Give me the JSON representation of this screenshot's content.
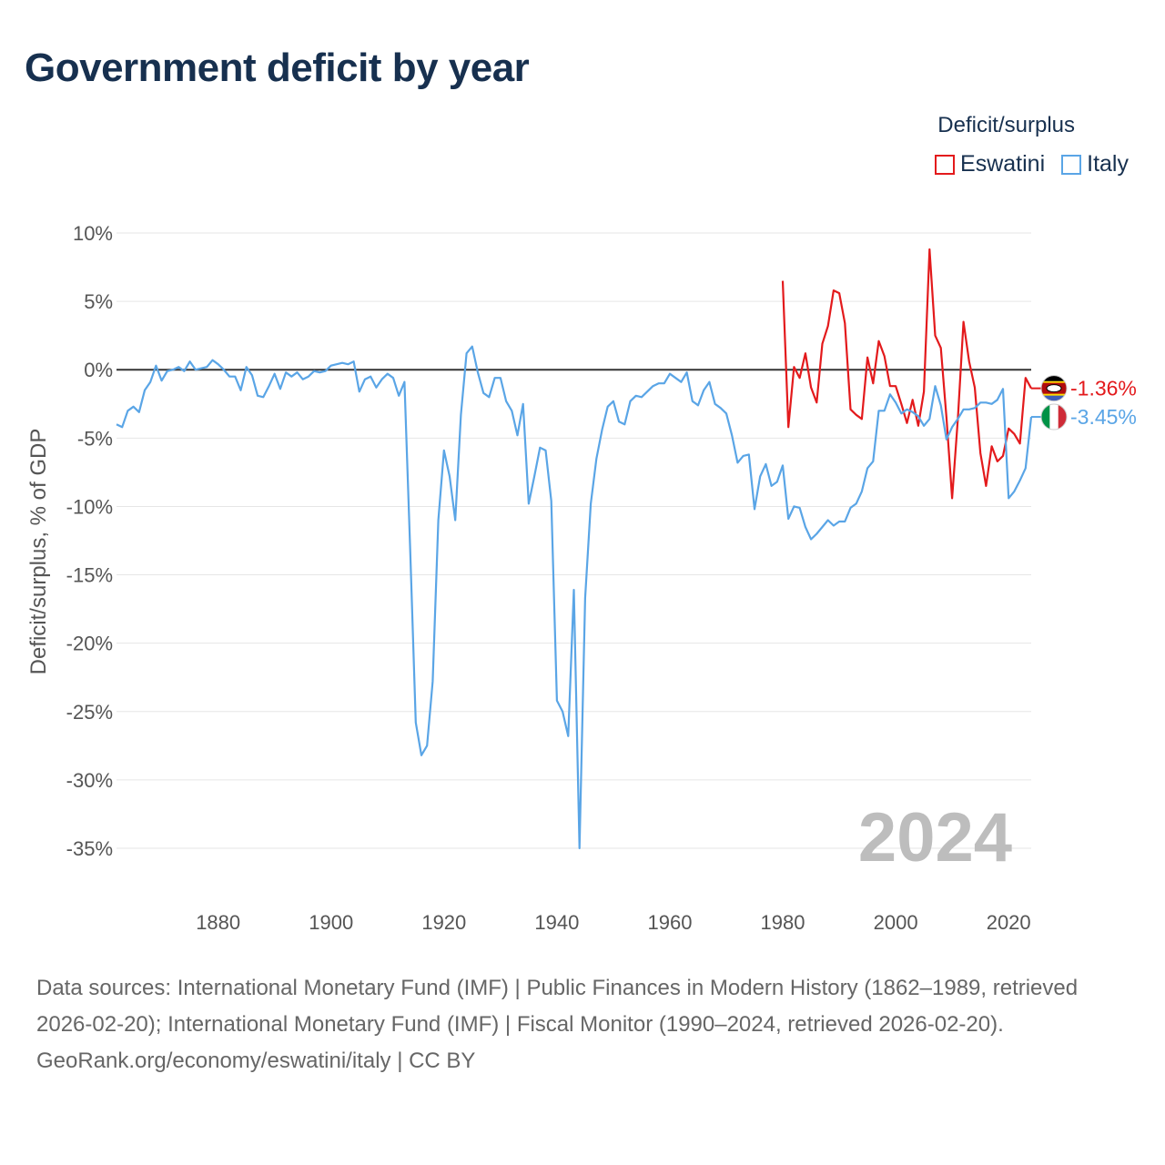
{
  "header": {
    "title": "Government deficit by year"
  },
  "legend": {
    "title": "Deficit/surplus",
    "items": [
      {
        "name": "Eswatini",
        "color": "#e31a1c"
      },
      {
        "name": "Italy",
        "color": "#5aa5e6"
      }
    ]
  },
  "footer": {
    "sources": "Data sources: International Monetary Fund (IMF) | Public Finances in Modern History (1862–1989, retrieved 2026-02-20); International Monetary Fund (IMF) | Fiscal Monitor (1990–2024, retrieved 2026-02-20).",
    "link": "GeoRank.org/economy/eswatini/italy | CC BY"
  },
  "chart_data": {
    "type": "line",
    "title": "Government deficit by year",
    "xlabel": "",
    "ylabel": "Deficit/surplus, % of GDP",
    "xlim": [
      1862,
      2024
    ],
    "ylim": [
      -35,
      10
    ],
    "x_ticks": [
      1880,
      1900,
      1920,
      1940,
      1960,
      1980,
      2000,
      2020
    ],
    "y_ticks": [
      10,
      5,
      0,
      -5,
      -10,
      -15,
      -20,
      -25,
      -30,
      -35
    ],
    "y_tick_labels": [
      "10%",
      "5%",
      "0%",
      "-5%",
      "-10%",
      "-15%",
      "-20%",
      "-25%",
      "-30%",
      "-35%"
    ],
    "watermark_year": "2024",
    "series": [
      {
        "name": "Eswatini",
        "color": "#e31a1c",
        "end_label": "-1.36%",
        "x": [
          1980,
          1981,
          1982,
          1983,
          1984,
          1985,
          1986,
          1987,
          1988,
          1989,
          1990,
          1991,
          1992,
          1993,
          1994,
          1995,
          1996,
          1997,
          1998,
          1999,
          2000,
          2001,
          2002,
          2003,
          2004,
          2005,
          2006,
          2007,
          2008,
          2009,
          2010,
          2011,
          2012,
          2013,
          2014,
          2015,
          2016,
          2017,
          2018,
          2019,
          2020,
          2021,
          2022,
          2023,
          2024
        ],
        "values": [
          6.5,
          -4.2,
          0.2,
          -0.6,
          1.2,
          -1.3,
          -2.4,
          1.9,
          3.2,
          5.8,
          5.6,
          3.4,
          -2.9,
          -3.3,
          -3.6,
          0.9,
          -1.0,
          2.1,
          1.0,
          -1.2,
          -1.2,
          -2.5,
          -3.9,
          -2.2,
          -4.1,
          -1.6,
          8.8,
          2.5,
          1.6,
          -3.5,
          -9.4,
          -3.6,
          3.5,
          0.6,
          -1.3,
          -6.1,
          -8.5,
          -5.6,
          -6.7,
          -6.3,
          -4.3,
          -4.7,
          -5.4,
          -0.6,
          -1.36
        ]
      },
      {
        "name": "Italy",
        "color": "#5aa5e6",
        "end_label": "-3.45%",
        "x": [
          1862,
          1863,
          1864,
          1865,
          1866,
          1867,
          1868,
          1869,
          1870,
          1871,
          1872,
          1873,
          1874,
          1875,
          1876,
          1877,
          1878,
          1879,
          1880,
          1881,
          1882,
          1883,
          1884,
          1885,
          1886,
          1887,
          1888,
          1889,
          1890,
          1891,
          1892,
          1893,
          1894,
          1895,
          1896,
          1897,
          1898,
          1899,
          1900,
          1901,
          1902,
          1903,
          1904,
          1905,
          1906,
          1907,
          1908,
          1909,
          1910,
          1911,
          1912,
          1913,
          1914,
          1915,
          1916,
          1917,
          1918,
          1919,
          1920,
          1921,
          1922,
          1923,
          1924,
          1925,
          1926,
          1927,
          1928,
          1929,
          1930,
          1931,
          1932,
          1933,
          1934,
          1935,
          1936,
          1937,
          1938,
          1939,
          1940,
          1941,
          1942,
          1943,
          1944,
          1945,
          1946,
          1947,
          1948,
          1949,
          1950,
          1951,
          1952,
          1953,
          1954,
          1955,
          1956,
          1957,
          1958,
          1959,
          1960,
          1961,
          1962,
          1963,
          1964,
          1965,
          1966,
          1967,
          1968,
          1969,
          1970,
          1971,
          1972,
          1973,
          1974,
          1975,
          1976,
          1977,
          1978,
          1979,
          1980,
          1981,
          1982,
          1983,
          1984,
          1985,
          1986,
          1987,
          1988,
          1989,
          1990,
          1991,
          1992,
          1993,
          1994,
          1995,
          1996,
          1997,
          1998,
          1999,
          2000,
          2001,
          2002,
          2003,
          2004,
          2005,
          2006,
          2007,
          2008,
          2009,
          2010,
          2011,
          2012,
          2013,
          2014,
          2015,
          2016,
          2017,
          2018,
          2019,
          2020,
          2021,
          2022,
          2023,
          2024
        ],
        "values": [
          -4.0,
          -4.2,
          -3.0,
          -2.7,
          -3.1,
          -1.5,
          -0.9,
          0.3,
          -0.8,
          -0.1,
          0.0,
          0.2,
          -0.1,
          0.6,
          0.0,
          0.1,
          0.2,
          0.7,
          0.4,
          0.0,
          -0.5,
          -0.5,
          -1.5,
          0.2,
          -0.4,
          -1.9,
          -2.0,
          -1.2,
          -0.3,
          -1.4,
          -0.2,
          -0.5,
          -0.2,
          -0.7,
          -0.5,
          -0.1,
          -0.2,
          -0.1,
          0.3,
          0.4,
          0.5,
          0.4,
          0.6,
          -1.6,
          -0.7,
          -0.5,
          -1.3,
          -0.7,
          -0.3,
          -0.6,
          -1.9,
          -0.9,
          -13.0,
          -25.8,
          -28.2,
          -27.5,
          -22.8,
          -11.0,
          -5.9,
          -7.8,
          -11.0,
          -3.3,
          1.2,
          1.7,
          -0.2,
          -1.7,
          -2.0,
          -0.6,
          -0.6,
          -2.3,
          -3.0,
          -4.8,
          -2.5,
          -9.8,
          -7.8,
          -5.7,
          -5.9,
          -9.6,
          -24.2,
          -25.0,
          -26.8,
          -16.1,
          -35.0,
          -16.7,
          -9.8,
          -6.5,
          -4.4,
          -2.7,
          -2.3,
          -3.8,
          -4.0,
          -2.3,
          -1.9,
          -2.0,
          -1.6,
          -1.2,
          -1.0,
          -1.0,
          -0.3,
          -0.6,
          -0.9,
          -0.2,
          -2.3,
          -2.6,
          -1.5,
          -0.9,
          -2.5,
          -2.8,
          -3.2,
          -4.8,
          -6.8,
          -6.3,
          -6.2,
          -10.2,
          -7.8,
          -6.9,
          -8.5,
          -8.2,
          -7.0,
          -10.9,
          -10.0,
          -10.1,
          -11.5,
          -12.4,
          -12.0,
          -11.5,
          -11.0,
          -11.4,
          -11.1,
          -11.1,
          -10.1,
          -9.8,
          -8.9,
          -7.2,
          -6.7,
          -3.0,
          -3.0,
          -1.8,
          -2.4,
          -3.2,
          -2.9,
          -3.1,
          -3.4,
          -4.1,
          -3.6,
          -1.2,
          -2.6,
          -5.1,
          -4.2,
          -3.6,
          -2.9,
          -2.9,
          -2.8,
          -2.4,
          -2.4,
          -2.5,
          -2.2,
          -1.4,
          -9.4,
          -8.9,
          -8.1,
          -7.2,
          -3.45
        ]
      }
    ]
  }
}
